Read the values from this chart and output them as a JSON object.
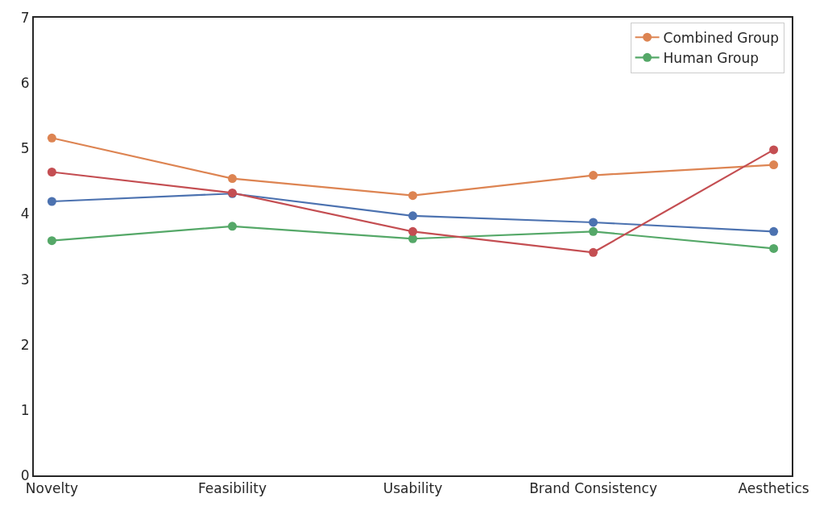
{
  "chart_data": {
    "type": "line",
    "categories": [
      "Novelty",
      "Feasibility",
      "Usability",
      "Brand Consistency",
      "Aesthetics"
    ],
    "series": [
      {
        "color": "#4c72b0",
        "values": [
          4.19,
          4.31,
          3.97,
          3.87,
          3.73
        ]
      },
      {
        "name": "Combined Group",
        "color": "#dd8452",
        "values": [
          5.16,
          4.54,
          4.28,
          4.59,
          4.75
        ]
      },
      {
        "name": "Human Group",
        "color": "#55a868",
        "values": [
          3.59,
          3.81,
          3.62,
          3.73,
          3.47
        ]
      },
      {
        "color": "#c44e52",
        "values": [
          4.64,
          4.32,
          3.73,
          3.41,
          4.98
        ]
      }
    ],
    "ylim": [
      0,
      7
    ],
    "yticks": [
      0,
      1,
      2,
      3,
      4,
      5,
      6,
      7
    ],
    "marker": "circle",
    "line_style": "solid",
    "legend": "top right"
  }
}
